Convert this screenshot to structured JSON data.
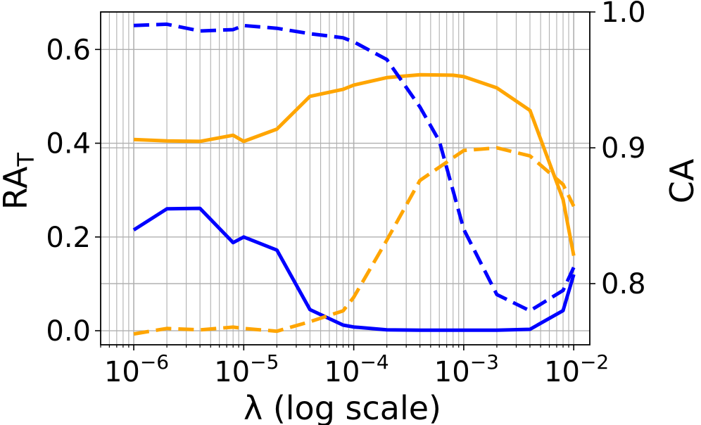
{
  "chart_data": {
    "type": "line",
    "xlabel": "λ (log scale)",
    "x_scale": "log",
    "xlim": [
      5e-07,
      0.014
    ],
    "x_ticks": [
      {
        "value": 1e-06,
        "base": "10",
        "exp": "−6"
      },
      {
        "value": 1e-05,
        "base": "10",
        "exp": "−5"
      },
      {
        "value": 0.0001,
        "base": "10",
        "exp": "−4"
      },
      {
        "value": 0.001,
        "base": "10",
        "exp": "−3"
      },
      {
        "value": 0.01,
        "base": "10",
        "exp": "−2"
      }
    ],
    "ylabel_left": {
      "main": "RA",
      "sub": "T"
    },
    "ylim_left": [
      -0.03,
      0.68
    ],
    "yticks_left": [
      {
        "value": 0.0,
        "label": "0.0"
      },
      {
        "value": 0.2,
        "label": "0.2"
      },
      {
        "value": 0.4,
        "label": "0.4"
      },
      {
        "value": 0.6,
        "label": "0.6"
      }
    ],
    "ylabel_right": "CA",
    "ylim_right": [
      0.755,
      1.0
    ],
    "yticks_right": [
      {
        "value": 0.8,
        "label": "0.8"
      },
      {
        "value": 0.9,
        "label": "0.9"
      },
      {
        "value": 1.0,
        "label": "1.0"
      }
    ],
    "grid": true,
    "series": [
      {
        "axis": "left",
        "color": "#0000ff",
        "style": "solid",
        "x": [
          1e-06,
          2e-06,
          4e-06,
          8e-06,
          1e-05,
          2e-05,
          4e-05,
          8e-05,
          0.0001,
          0.0002,
          0.0004,
          0.0008,
          0.001,
          0.002,
          0.004,
          0.008,
          0.01
        ],
        "y": [
          0.215,
          0.26,
          0.261,
          0.188,
          0.2,
          0.172,
          0.045,
          0.012,
          0.008,
          0.002,
          0.001,
          0.001,
          0.001,
          0.001,
          0.003,
          0.043,
          0.12
        ]
      },
      {
        "axis": "left",
        "color": "#ffa500",
        "style": "solid",
        "x": [
          1e-06,
          2e-06,
          4e-06,
          8e-06,
          1e-05,
          2e-05,
          4e-05,
          8e-05,
          0.0001,
          0.0002,
          0.0004,
          0.0008,
          0.001,
          0.002,
          0.004,
          0.008,
          0.01
        ],
        "y": [
          0.408,
          0.405,
          0.404,
          0.417,
          0.404,
          0.43,
          0.5,
          0.515,
          0.524,
          0.54,
          0.546,
          0.545,
          0.542,
          0.518,
          0.47,
          0.28,
          0.16
        ]
      },
      {
        "axis": "right",
        "color": "#0000ff",
        "style": "dashed",
        "x": [
          1e-06,
          2e-06,
          4e-06,
          8e-06,
          1e-05,
          2e-05,
          4e-05,
          8e-05,
          0.0001,
          0.0002,
          0.0004,
          0.0006,
          0.001,
          0.002,
          0.004,
          0.008,
          0.01
        ],
        "y": [
          0.99,
          0.991,
          0.986,
          0.987,
          0.99,
          0.988,
          0.984,
          0.981,
          0.978,
          0.965,
          0.93,
          0.905,
          0.84,
          0.792,
          0.78,
          0.795,
          0.812
        ]
      },
      {
        "axis": "right",
        "color": "#ffa500",
        "style": "dashed",
        "x": [
          1e-06,
          2e-06,
          4e-06,
          8e-06,
          1e-05,
          2e-05,
          4e-05,
          8e-05,
          0.0001,
          0.0002,
          0.0004,
          0.001,
          0.002,
          0.004,
          0.008,
          0.01
        ],
        "y": [
          0.763,
          0.767,
          0.766,
          0.768,
          0.767,
          0.765,
          0.772,
          0.78,
          0.79,
          0.832,
          0.876,
          0.898,
          0.9,
          0.894,
          0.873,
          0.857
        ]
      }
    ]
  }
}
